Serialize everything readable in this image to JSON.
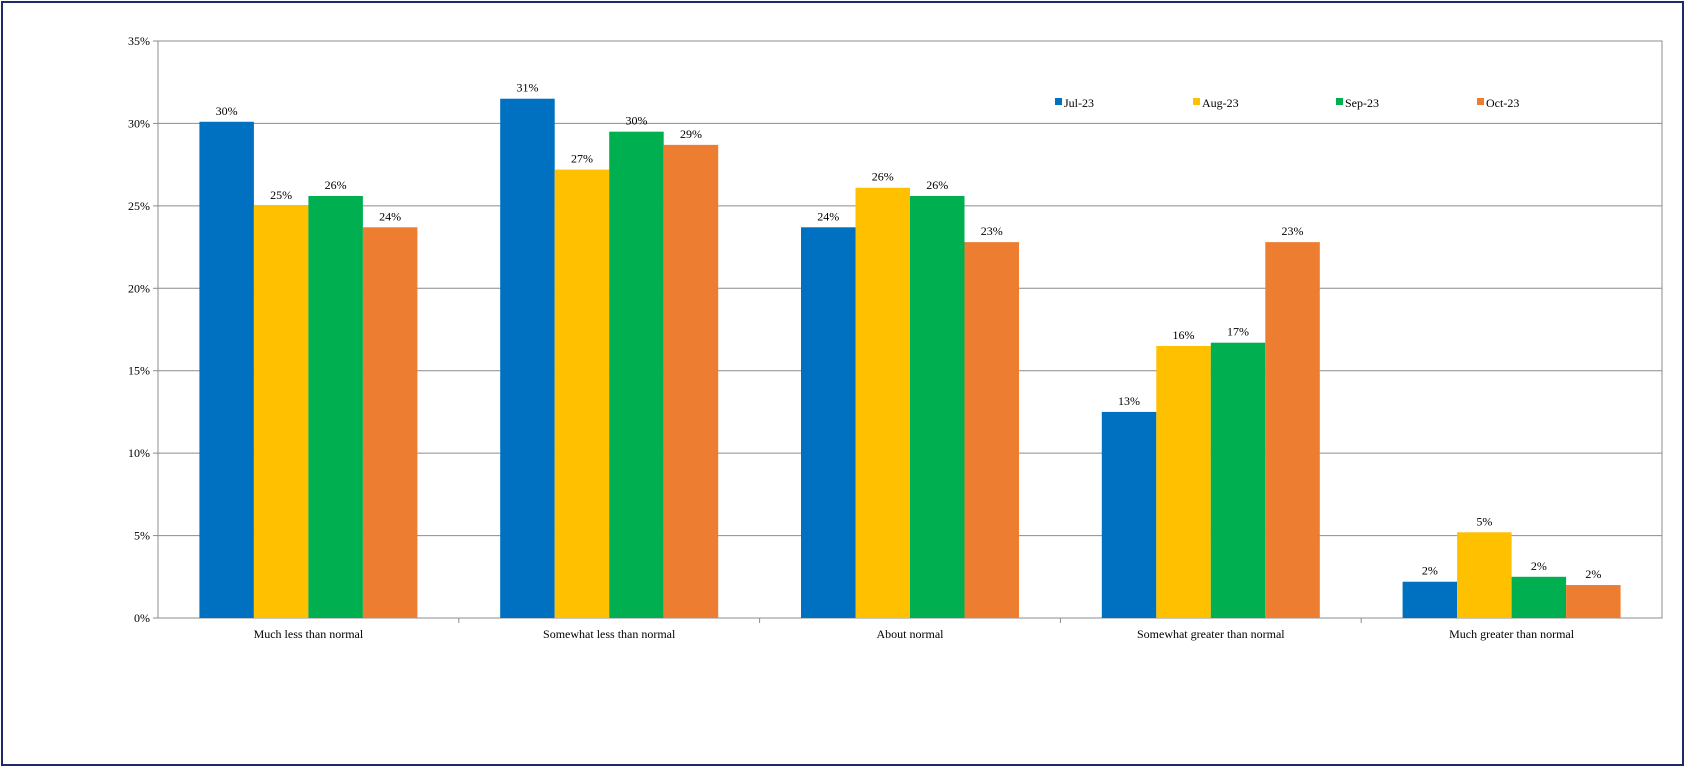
{
  "chart_data": {
    "type": "bar",
    "title": "",
    "xlabel": "",
    "ylabel": "",
    "ylim": [
      0,
      35
    ],
    "yticks": [
      0,
      5,
      10,
      15,
      20,
      25,
      30,
      35
    ],
    "ytick_labels": [
      "0%",
      "5%",
      "10%",
      "15%",
      "20%",
      "25%",
      "30%",
      "35%"
    ],
    "grid": true,
    "legend_position": "top-right",
    "categories": [
      "Much less than normal",
      "Somewhat less than normal",
      "About normal",
      "Somewhat greater than normal",
      "Much greater than normal"
    ],
    "series": [
      {
        "name": "Jul-23",
        "color": "#0070c0",
        "values": [
          30.1,
          31.5,
          23.7,
          12.5,
          2.2
        ],
        "labels": [
          "30%",
          "31%",
          "24%",
          "13%",
          "2%"
        ]
      },
      {
        "name": "Aug-23",
        "color": "#ffc000",
        "values": [
          25.0,
          27.2,
          26.1,
          16.5,
          5.2
        ],
        "labels": [
          "25%",
          "27%",
          "26%",
          "16%",
          "5%"
        ]
      },
      {
        "name": "Sep-23",
        "color": "#00b050",
        "values": [
          25.6,
          29.5,
          25.6,
          16.7,
          2.5
        ],
        "labels": [
          "26%",
          "30%",
          "26%",
          "17%",
          "2%"
        ]
      },
      {
        "name": "Oct-23",
        "color": "#ed7d31",
        "values": [
          23.7,
          28.7,
          22.8,
          22.8,
          2.0
        ],
        "labels": [
          "24%",
          "29%",
          "23%",
          "23%",
          "2%"
        ]
      }
    ]
  }
}
